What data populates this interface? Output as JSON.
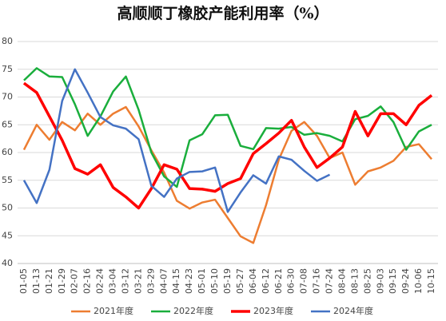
{
  "chart_data": {
    "type": "line",
    "title": "高顺顺丁橡胶产能利用率（%）",
    "categories": [
      "01-05",
      "01-13",
      "01-21",
      "01-29",
      "02-07",
      "02-16",
      "02-24",
      "03-04",
      "03-12",
      "03-21",
      "03-29",
      "04-07",
      "04-15",
      "04-23",
      "05-01",
      "05-10",
      "05-19",
      "05-27",
      "06-04",
      "06-12",
      "06-21",
      "06-30",
      "07-08",
      "07-16",
      "07-24",
      "08-04",
      "08-13",
      "08-25",
      "09-03",
      "09-15",
      "09-24",
      "10-06",
      "10-15"
    ],
    "series": [
      {
        "name": "2021年度",
        "color": "#ED7D31",
        "width": 2.5,
        "values": [
          60.5,
          65,
          62.3,
          65.5,
          64,
          67,
          65,
          67,
          68.2,
          64.7,
          60.4,
          56.4,
          51.3,
          49.9,
          51,
          51.5,
          48.2,
          44.9,
          43.7,
          50.5,
          58.7,
          63.9,
          65.5,
          63,
          59,
          60,
          54.2,
          56.6,
          57.3,
          58.5,
          61,
          61.5,
          58.8
        ]
      },
      {
        "name": "2022年度",
        "color": "#1AAE3C",
        "width": 2.5,
        "values": [
          73,
          75.2,
          73.7,
          73.6,
          68.7,
          63,
          66.5,
          71,
          73.7,
          67.7,
          60,
          55.7,
          53.8,
          62.2,
          63.3,
          66.7,
          66.8,
          61.2,
          60.6,
          64.4,
          64.3,
          64.6,
          63.2,
          63.5,
          63,
          62,
          66,
          66.6,
          68.3,
          65.5,
          60.5,
          63.8,
          65
        ]
      },
      {
        "name": "2023年度",
        "color": "#FF0000",
        "width": 3.5,
        "values": [
          72.5,
          70.8,
          66.5,
          62.2,
          57.1,
          56.1,
          57.8,
          53.7,
          52,
          50,
          53.5,
          57.8,
          57,
          53.5,
          53.4,
          53,
          54.4,
          55.3,
          59.8,
          61.6,
          63.5,
          65.8,
          61,
          57.3,
          59,
          61,
          67.4,
          63,
          67,
          67,
          65,
          68.5,
          70.3
        ]
      },
      {
        "name": "2024年度",
        "color": "#4472C4",
        "width": 2.5,
        "values": [
          55,
          50.9,
          56.9,
          69.3,
          75,
          70.8,
          66.4,
          64.9,
          64.3,
          62.4,
          54,
          52,
          55.3,
          56.5,
          56.6,
          57.3,
          49.3,
          52.8,
          55.9,
          54.4,
          59.3,
          58.7,
          56.7,
          54.9,
          56,
          null,
          null,
          null,
          null,
          null,
          null,
          null,
          null
        ]
      }
    ],
    "ylim": [
      40,
      80
    ],
    "yticks": [
      40,
      45,
      50,
      55,
      60,
      65,
      70,
      75,
      80
    ],
    "grid": true,
    "legend": "bottom"
  }
}
